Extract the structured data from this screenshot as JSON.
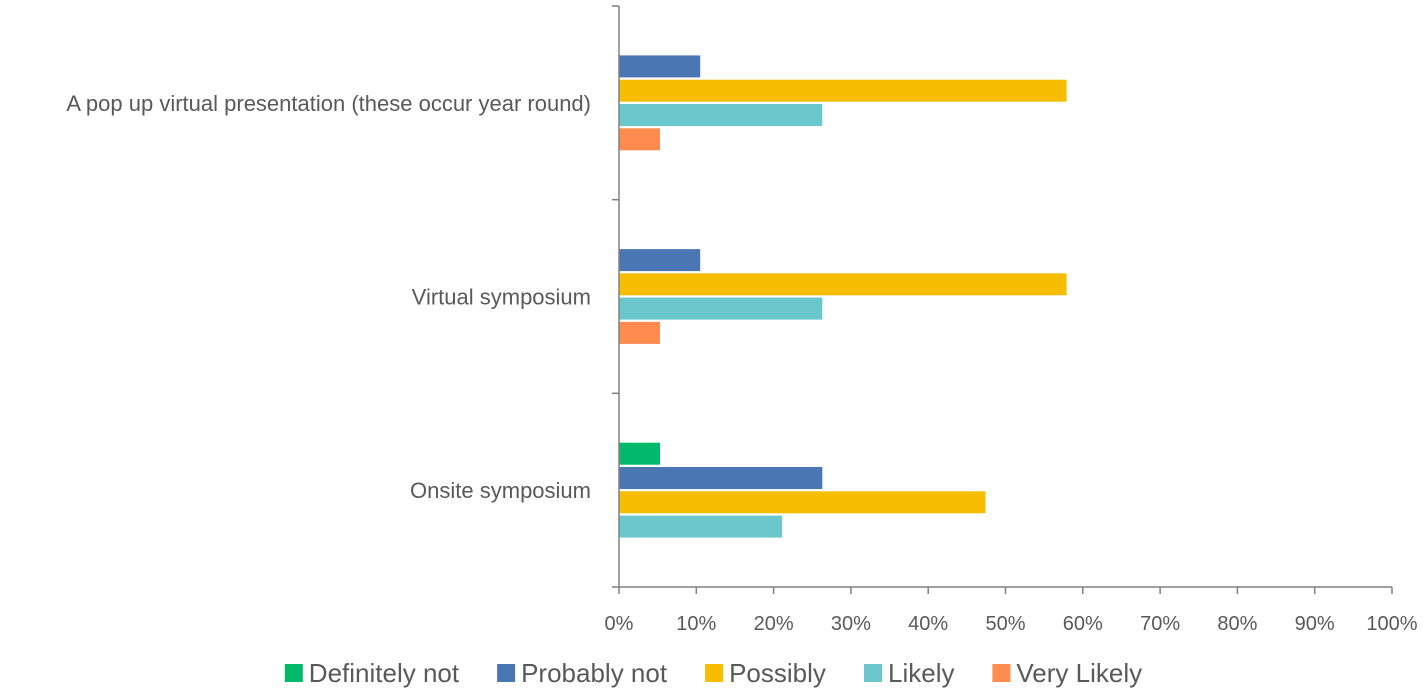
{
  "chart_data": {
    "type": "bar",
    "orientation": "horizontal",
    "categories": [
      "A pop up virtual presentation (these occur year round)",
      "Virtual symposium",
      "Onsite symposium"
    ],
    "series": [
      {
        "name": "Definitely not",
        "color": "#00b96b",
        "values": [
          0,
          0,
          5.3
        ]
      },
      {
        "name": "Probably not",
        "color": "#4a77b4",
        "values": [
          10.5,
          10.5,
          26.3
        ]
      },
      {
        "name": "Possibly",
        "color": "#f7bd00",
        "values": [
          57.9,
          57.9,
          47.4
        ]
      },
      {
        "name": "Likely",
        "color": "#6ac8cc",
        "values": [
          26.3,
          26.3,
          21.1
        ]
      },
      {
        "name": "Very Likely",
        "color": "#ff8b4f",
        "values": [
          5.3,
          5.3,
          0
        ]
      }
    ],
    "xlim": [
      0,
      100
    ],
    "xticks": [
      "0%",
      "10%",
      "20%",
      "30%",
      "40%",
      "50%",
      "60%",
      "70%",
      "80%",
      "90%",
      "100%"
    ],
    "grid": false,
    "legend": "bottom",
    "axis_color": "#808080"
  }
}
